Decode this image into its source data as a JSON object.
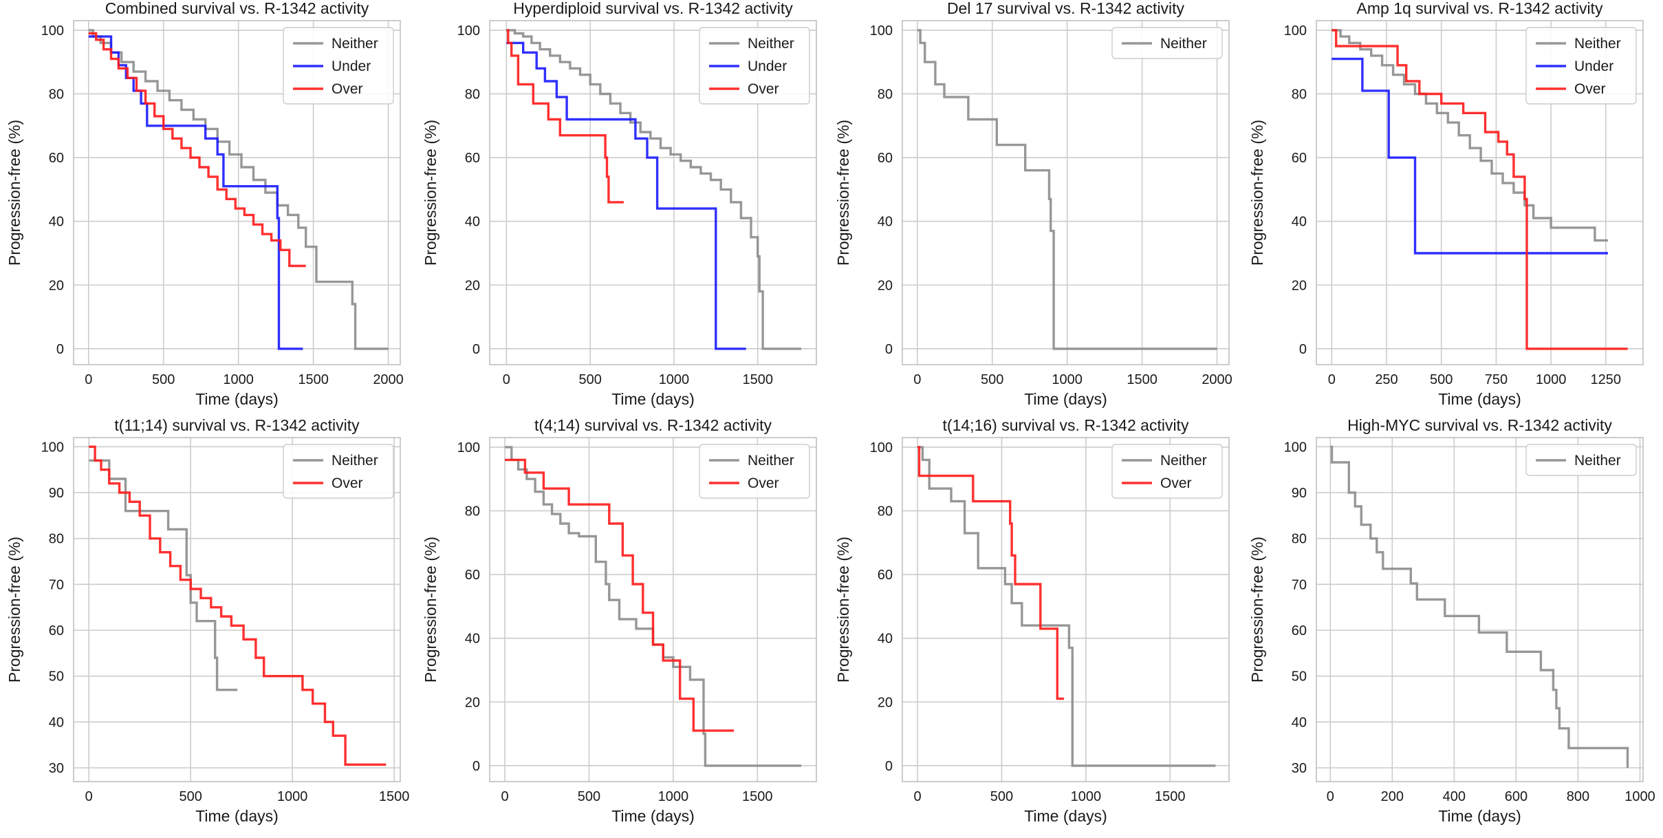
{
  "figure": {
    "background": "#ffffff",
    "grid": true
  },
  "series_colors": {
    "Neither": "#8c8c8c",
    "Under": "#1a1aff",
    "Over": "#ff1a1a"
  },
  "chart_data": [
    {
      "type": "line",
      "step": true,
      "title": "Combined survival vs. R-1342 activity",
      "xlabel": "Time (days)",
      "ylabel": "Progression-free (%)",
      "xlim": [
        -100,
        2080
      ],
      "ylim": [
        -5,
        103
      ],
      "xticks": [
        0,
        500,
        1000,
        1500,
        2000
      ],
      "yticks": [
        0,
        20,
        40,
        60,
        80,
        100
      ],
      "legend": "top-right",
      "series": [
        {
          "name": "Neither",
          "x": [
            0,
            30,
            80,
            150,
            220,
            300,
            380,
            460,
            540,
            620,
            700,
            780,
            860,
            940,
            1020,
            1100,
            1180,
            1260,
            1330,
            1400,
            1450,
            1520,
            1760,
            1780,
            2000
          ],
          "y": [
            100,
            98,
            96,
            93,
            90,
            87,
            84,
            81,
            78,
            75,
            72,
            69,
            65,
            61,
            57,
            53,
            49,
            45,
            42,
            38,
            32,
            21,
            14,
            0,
            0
          ]
        },
        {
          "name": "Under",
          "x": [
            0,
            150,
            200,
            250,
            300,
            350,
            390,
            780,
            860,
            900,
            1260,
            1270,
            1430
          ],
          "y": [
            98,
            93,
            89,
            85,
            81,
            77,
            70,
            66,
            61,
            51,
            41,
            0,
            0
          ]
        },
        {
          "name": "Over",
          "x": [
            0,
            50,
            100,
            150,
            200,
            260,
            320,
            380,
            440,
            500,
            560,
            620,
            680,
            740,
            800,
            860,
            920,
            980,
            1040,
            1100,
            1160,
            1220,
            1280,
            1340,
            1450
          ],
          "y": [
            99,
            97,
            94,
            91,
            88,
            85,
            81,
            77,
            73,
            69,
            66,
            63,
            60,
            57,
            54,
            50,
            47,
            44,
            42,
            39,
            36,
            34,
            31,
            26,
            26
          ]
        }
      ]
    },
    {
      "type": "line",
      "step": true,
      "title": "Hyperdiploid survival vs. R-1342 activity",
      "xlabel": "Time (days)",
      "ylabel": "Progression-free (%)",
      "xlim": [
        -100,
        1850
      ],
      "ylim": [
        -5,
        103
      ],
      "xticks": [
        0,
        500,
        1000,
        1500
      ],
      "yticks": [
        0,
        20,
        40,
        60,
        80,
        100
      ],
      "legend": "top-right",
      "series": [
        {
          "name": "Neither",
          "x": [
            0,
            50,
            100,
            150,
            200,
            260,
            320,
            380,
            440,
            500,
            560,
            620,
            680,
            740,
            800,
            860,
            920,
            980,
            1040,
            1100,
            1160,
            1220,
            1280,
            1340,
            1400,
            1460,
            1500,
            1510,
            1530,
            1760
          ],
          "y": [
            100,
            99,
            98,
            96,
            94,
            92,
            90,
            88,
            86,
            83,
            80,
            77,
            74,
            71,
            68,
            66,
            63,
            61,
            59,
            57,
            55,
            53,
            50,
            46,
            41,
            35,
            29,
            18,
            0,
            0
          ]
        },
        {
          "name": "Under",
          "x": [
            0,
            100,
            180,
            230,
            300,
            360,
            770,
            840,
            900,
            1250,
            1430
          ],
          "y": [
            96,
            93,
            88,
            84,
            79,
            72,
            66,
            60,
            44,
            0,
            0
          ]
        },
        {
          "name": "Over",
          "x": [
            0,
            10,
            30,
            70,
            160,
            250,
            320,
            590,
            600,
            610,
            700
          ],
          "y": [
            100,
            96,
            92,
            83,
            77,
            72,
            67,
            60,
            54,
            46,
            46
          ]
        }
      ]
    },
    {
      "type": "line",
      "step": true,
      "title": "Del 17 survival vs. R-1342 activity",
      "xlabel": "Time (days)",
      "ylabel": "Progression-free (%)",
      "xlim": [
        -100,
        2080
      ],
      "ylim": [
        -5,
        103
      ],
      "xticks": [
        0,
        500,
        1000,
        1500,
        2000
      ],
      "yticks": [
        0,
        20,
        40,
        60,
        80,
        100
      ],
      "legend": "top-right",
      "series": [
        {
          "name": "Neither",
          "x": [
            0,
            20,
            50,
            120,
            180,
            340,
            530,
            720,
            880,
            890,
            910,
            2000
          ],
          "y": [
            100,
            96,
            90,
            83,
            79,
            72,
            64,
            56,
            47,
            37,
            0,
            0
          ]
        }
      ]
    },
    {
      "type": "line",
      "step": true,
      "title": "Amp 1q survival vs. R-1342 activity",
      "xlabel": "Time (days)",
      "ylabel": "Progression-free (%)",
      "xlim": [
        -70,
        1420
      ],
      "ylim": [
        -5,
        103
      ],
      "xticks": [
        0,
        250,
        500,
        750,
        1000,
        1250
      ],
      "yticks": [
        0,
        20,
        40,
        60,
        80,
        100
      ],
      "legend": "top-right",
      "series": [
        {
          "name": "Neither",
          "x": [
            0,
            40,
            80,
            130,
            180,
            230,
            280,
            330,
            380,
            430,
            480,
            530,
            580,
            630,
            680,
            730,
            780,
            830,
            880,
            920,
            1000,
            1200,
            1260
          ],
          "y": [
            100,
            98,
            96,
            94,
            92,
            89,
            86,
            83,
            80,
            77,
            74,
            71,
            67,
            63,
            59,
            55,
            52,
            49,
            45,
            41,
            38,
            34,
            34
          ]
        },
        {
          "name": "Under",
          "x": [
            0,
            140,
            260,
            380,
            1260
          ],
          "y": [
            91,
            81,
            60,
            30,
            30
          ]
        },
        {
          "name": "Over",
          "x": [
            0,
            20,
            300,
            340,
            400,
            500,
            600,
            700,
            760,
            800,
            830,
            880,
            890,
            1350
          ],
          "y": [
            100,
            95,
            89,
            84,
            80,
            77,
            74,
            68,
            65,
            61,
            54,
            47,
            0,
            0
          ]
        }
      ]
    },
    {
      "type": "line",
      "step": true,
      "title": "t(11;14) survival vs. R-1342 activity",
      "xlabel": "Time (days)",
      "ylabel": "Progression-free (%)",
      "xlim": [
        -75,
        1530
      ],
      "ylim": [
        27,
        102
      ],
      "xticks": [
        0,
        500,
        1000,
        1500
      ],
      "yticks": [
        30,
        40,
        50,
        60,
        70,
        80,
        90,
        100
      ],
      "legend": "top-right",
      "series": [
        {
          "name": "Neither",
          "x": [
            0,
            100,
            180,
            280,
            390,
            480,
            500,
            530,
            620,
            630,
            730
          ],
          "y": [
            97,
            93,
            86,
            86,
            82,
            72,
            66,
            62,
            54,
            47,
            47
          ]
        },
        {
          "name": "Over",
          "x": [
            0,
            30,
            60,
            100,
            150,
            200,
            250,
            300,
            350,
            400,
            450,
            500,
            550,
            600,
            650,
            700,
            760,
            820,
            860,
            1050,
            1100,
            1160,
            1200,
            1260,
            1460
          ],
          "y": [
            100,
            97,
            95,
            92,
            90,
            88,
            85,
            80,
            77,
            74,
            71,
            69,
            67,
            65,
            63,
            61,
            58,
            54,
            50,
            47,
            44,
            40,
            37,
            30.7,
            30.7
          ]
        }
      ]
    },
    {
      "type": "line",
      "step": true,
      "title": "t(4;14) survival vs. R-1342 activity",
      "xlabel": "Time (days)",
      "ylabel": "Progression-free (%)",
      "xlim": [
        -90,
        1850
      ],
      "ylim": [
        -5,
        103
      ],
      "xticks": [
        0,
        500,
        1000,
        1500
      ],
      "yticks": [
        0,
        20,
        40,
        60,
        80,
        100
      ],
      "legend": "top-right",
      "series": [
        {
          "name": "Neither",
          "x": [
            0,
            40,
            80,
            130,
            180,
            230,
            280,
            330,
            380,
            440,
            540,
            600,
            620,
            680,
            780,
            880,
            940,
            1000,
            1100,
            1180,
            1190,
            1760
          ],
          "y": [
            100,
            96,
            93,
            90,
            86,
            82,
            79,
            76,
            73,
            72,
            64,
            57,
            52,
            46,
            43,
            38,
            34,
            31,
            27,
            10,
            0,
            0
          ]
        },
        {
          "name": "Over",
          "x": [
            0,
            120,
            230,
            380,
            620,
            700,
            760,
            820,
            880,
            940,
            1040,
            1120,
            1360
          ],
          "y": [
            96,
            92,
            87,
            82,
            76,
            66,
            57,
            48,
            38,
            33,
            21,
            11,
            11
          ]
        }
      ]
    },
    {
      "type": "line",
      "step": true,
      "title": "t(14;16) survival vs. R-1342 activity",
      "xlabel": "Time (days)",
      "ylabel": "Progression-free (%)",
      "xlim": [
        -90,
        1850
      ],
      "ylim": [
        -5,
        103
      ],
      "xticks": [
        0,
        500,
        1000,
        1500
      ],
      "yticks": [
        0,
        20,
        40,
        60,
        80,
        100
      ],
      "legend": "top-right",
      "series": [
        {
          "name": "Neither",
          "x": [
            0,
            30,
            70,
            200,
            280,
            360,
            520,
            560,
            620,
            680,
            900,
            920,
            1770
          ],
          "y": [
            100,
            96,
            87,
            83,
            73,
            62,
            57,
            51,
            44,
            44,
            37,
            0,
            0
          ]
        },
        {
          "name": "Over",
          "x": [
            0,
            10,
            330,
            550,
            560,
            580,
            730,
            830,
            870
          ],
          "y": [
            100,
            91,
            83,
            76,
            66,
            57,
            43,
            21,
            21
          ]
        }
      ]
    },
    {
      "type": "line",
      "step": true,
      "title": "High-MYC survival vs. R-1342 activity",
      "xlabel": "Time (days)",
      "ylabel": "Progression-free (%)",
      "xlim": [
        -45,
        1010
      ],
      "ylim": [
        27,
        102
      ],
      "xticks": [
        0,
        200,
        400,
        600,
        800,
        1000
      ],
      "yticks": [
        30,
        40,
        50,
        60,
        70,
        80,
        90,
        100
      ],
      "legend": "top-right",
      "series": [
        {
          "name": "Neither",
          "x": [
            0,
            5,
            60,
            80,
            100,
            130,
            150,
            170,
            260,
            280,
            370,
            480,
            570,
            680,
            720,
            730,
            740,
            770,
            960
          ],
          "y": [
            100,
            96.6,
            90,
            87,
            83,
            80,
            77,
            73.4,
            70.2,
            66.7,
            63.1,
            59.5,
            55.3,
            51.3,
            47,
            43,
            38.6,
            34.3,
            30
          ]
        }
      ]
    }
  ]
}
